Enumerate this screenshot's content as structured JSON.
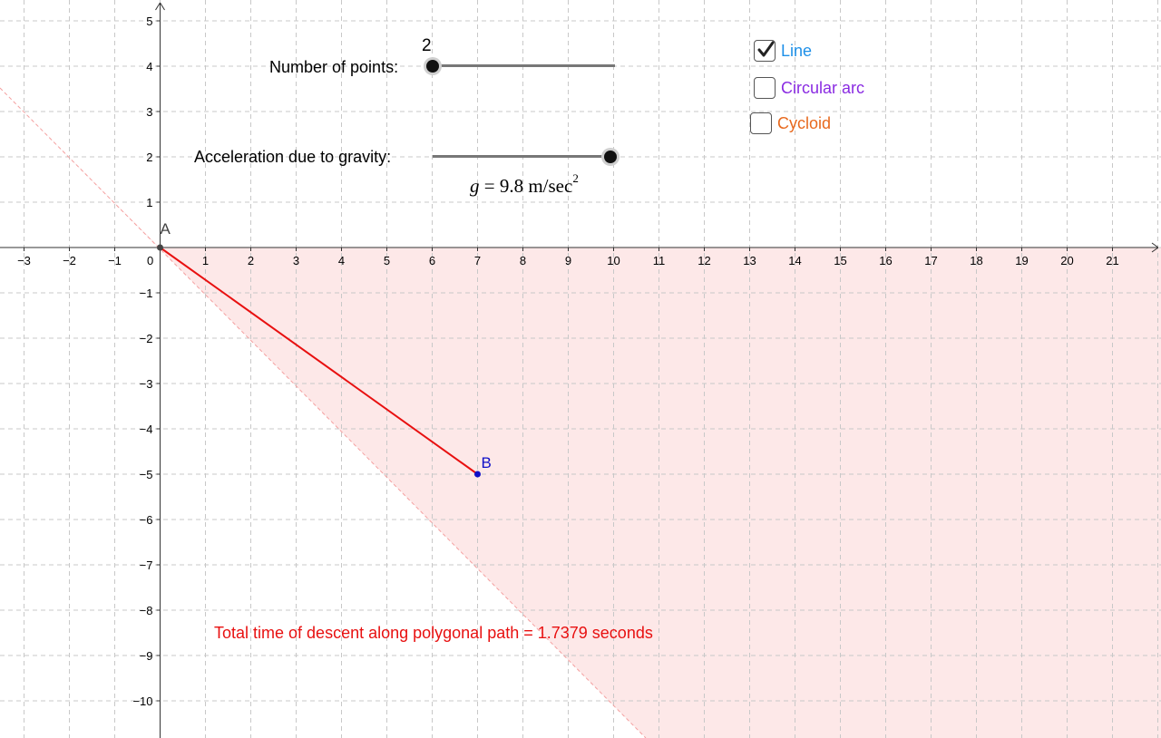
{
  "axes": {
    "x_ticks": [
      "−3",
      "−2",
      "−1",
      "1",
      "2",
      "3",
      "4",
      "5",
      "6",
      "7",
      "8",
      "9",
      "10",
      "11",
      "12",
      "13",
      "14",
      "15",
      "16",
      "17",
      "18",
      "19",
      "20",
      "21"
    ],
    "y_ticks": [
      "5",
      "4",
      "3",
      "2",
      "1",
      "−1",
      "−2",
      "−3",
      "−4",
      "−5",
      "−6",
      "−7",
      "−8",
      "−9",
      "−10"
    ],
    "origin_label": "0"
  },
  "points": {
    "a": {
      "label": "A",
      "x": 0,
      "y": 0
    },
    "b": {
      "label": "B",
      "x": 7,
      "y": -5
    }
  },
  "sliders": {
    "points": {
      "label": "Number of points:",
      "value": "2",
      "level": 0.0
    },
    "gravity": {
      "label": "Acceleration due to gravity:",
      "level": 1.0
    }
  },
  "formula": {
    "var": "g",
    "eq": " = 9.8 m/sec",
    "exp": "2"
  },
  "checkboxes": [
    {
      "label": "Line",
      "checked": true,
      "color": "#1e90e8"
    },
    {
      "label": "Circular arc",
      "checked": false,
      "color": "#8a2be2"
    },
    {
      "label": "Cycloid",
      "checked": false,
      "color": "#e8691e"
    }
  ],
  "result": {
    "text": "Total time of descent along polygonal path = 1.7379 seconds",
    "color": "#e81010"
  },
  "colors": {
    "path": "#e81010",
    "region": "#fde8e8",
    "point_b": "#1010c8"
  }
}
